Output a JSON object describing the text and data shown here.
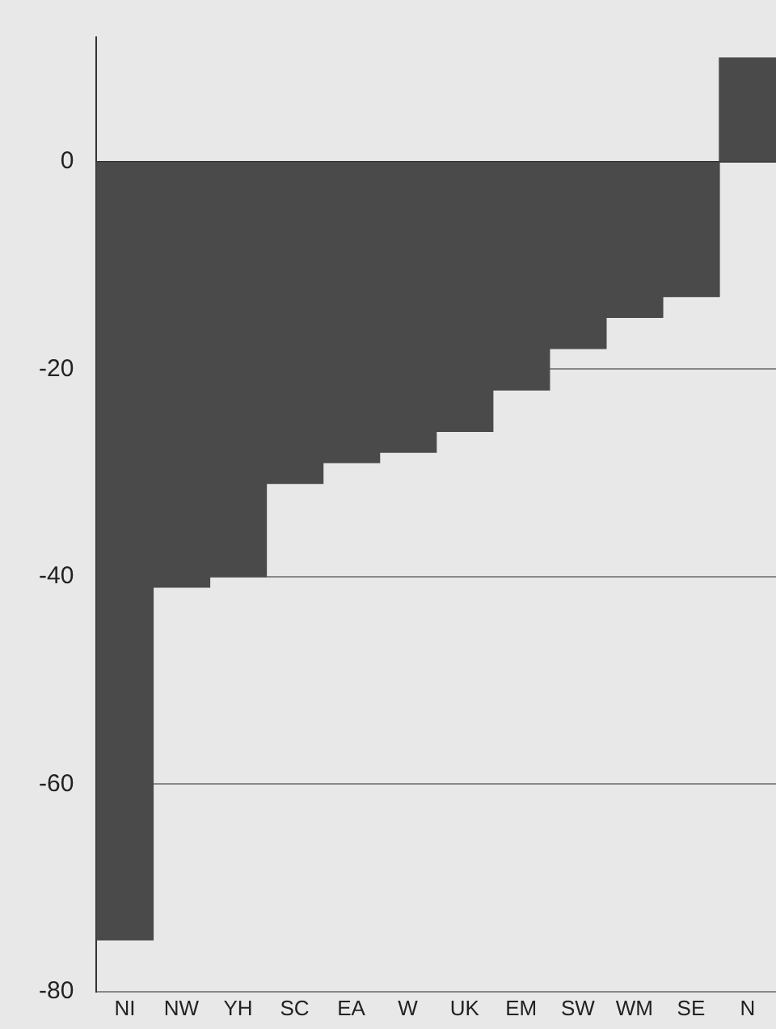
{
  "chart_data": {
    "type": "bar",
    "categories": [
      "NI",
      "NW",
      "YH",
      "SC",
      "EA",
      "W",
      "UK",
      "EM",
      "SW",
      "WM",
      "SE",
      "N"
    ],
    "values": [
      -75,
      -41,
      -40,
      -31,
      -29,
      -28,
      -26,
      -22,
      -18,
      -15,
      -13,
      10
    ],
    "color": "#4a4a4a",
    "ylim": [
      -80,
      12
    ],
    "yticks": [
      -80,
      -60,
      -40,
      -20,
      0
    ],
    "grid": "y",
    "legend": false
  }
}
